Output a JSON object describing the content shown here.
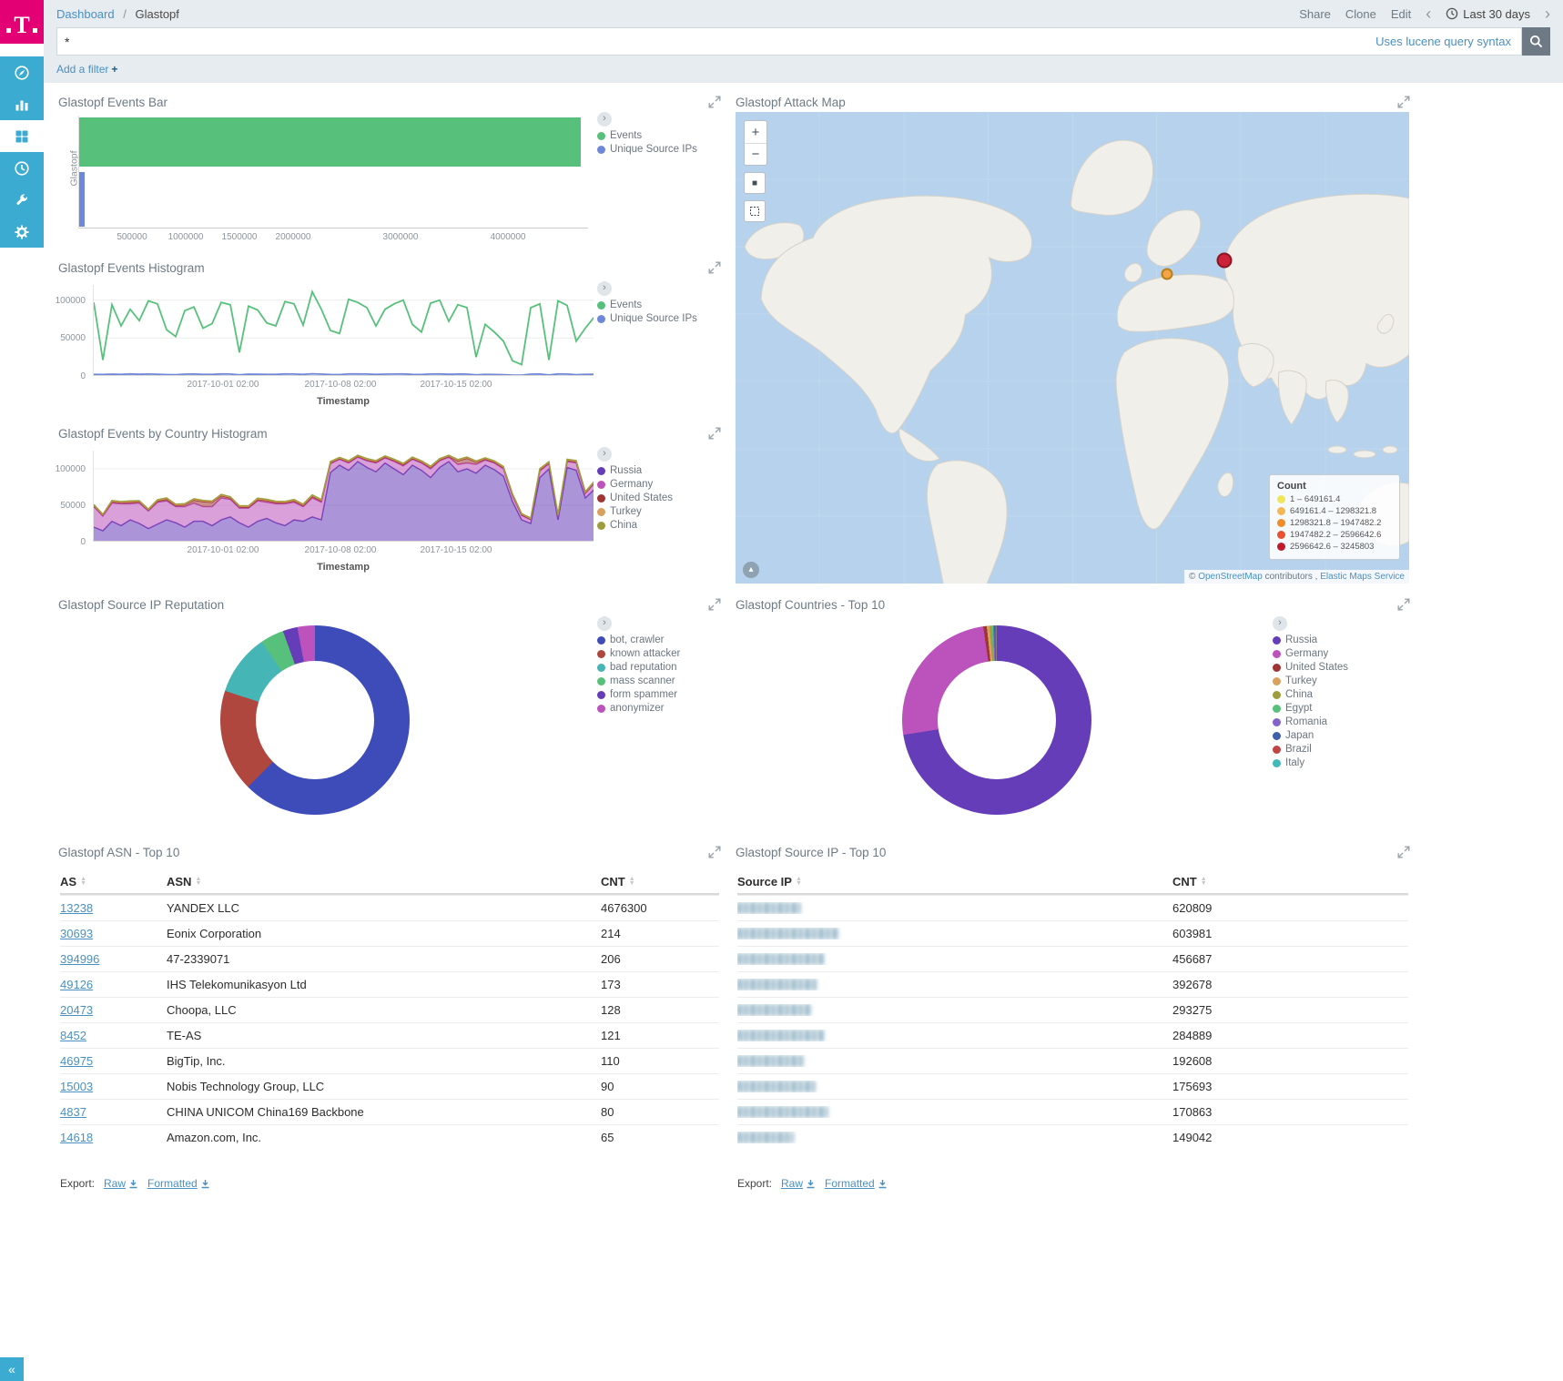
{
  "chrome": {
    "logo": "T",
    "breadcrumb": {
      "parent": "Dashboard",
      "sep": "/",
      "current": "Glastopf"
    },
    "actions": {
      "share": "Share",
      "clone": "Clone",
      "edit": "Edit"
    },
    "time": {
      "prev": "‹",
      "label": "Last 30 days",
      "next": "›"
    },
    "search": {
      "value": "*",
      "hint": "Uses lucene query syntax"
    },
    "add_filter": "Add a filter",
    "collapse": "«"
  },
  "sidebar": {
    "items": [
      {
        "name": "discover"
      },
      {
        "name": "visualize"
      },
      {
        "name": "dashboard",
        "active": true
      },
      {
        "name": "timelion"
      },
      {
        "name": "dev-tools"
      },
      {
        "name": "management"
      }
    ]
  },
  "panels": {
    "events_bar": {
      "title": "Glastopf Events Bar",
      "category": "Glastopf",
      "x_ticks": [
        500000,
        1000000,
        1500000,
        2000000,
        3000000,
        4000000
      ],
      "x_max": 4750000,
      "series": [
        {
          "label": "Events",
          "color": "#57c17b",
          "value": 4677487
        },
        {
          "label": "Unique Source IPs",
          "color": "#6f87d8",
          "value": 52000
        }
      ]
    },
    "attack_map": {
      "title": "Glastopf Attack Map",
      "controls": {
        "zoom_in": "+",
        "zoom_out": "−",
        "fit": "■"
      },
      "legend_title": "Count",
      "legend": [
        {
          "color": "#efe65a",
          "label": "1 – 649161.4"
        },
        {
          "color": "#f5b754",
          "label": "649161.4 – 1298321.8"
        },
        {
          "color": "#ef8d2a",
          "label": "1298321.8 – 1947482.2"
        },
        {
          "color": "#e85132",
          "label": "1947482.2 – 2596642.6"
        },
        {
          "color": "#bf1b2c",
          "label": "2596642.6 – 3245803"
        }
      ],
      "markers": [
        {
          "x": 0.641,
          "y": 0.344,
          "d": 13,
          "color": "#f5a44a",
          "border": "#b97f17"
        },
        {
          "x": 0.726,
          "y": 0.315,
          "d": 17,
          "color": "#cb2339",
          "border": "#8c1423"
        }
      ],
      "attribution": {
        "copy": "©",
        "osm": "OpenStreetMap",
        "contributors": "contributors",
        "sep": ",",
        "elastic": "Elastic Maps Service"
      }
    },
    "events_histogram": {
      "title": "Glastopf Events Histogram",
      "x_label": "Timestamp",
      "x_ticks": [
        "2017-10-01 02:00",
        "2017-10-08 02:00",
        "2017-10-15 02:00"
      ],
      "y_ticks": [
        0,
        50000,
        100000
      ],
      "y_max": 120000,
      "series": [
        {
          "label": "Events",
          "color": "#57c17b",
          "values": [
            97000,
            21000,
            94000,
            66000,
            88000,
            73000,
            99000,
            95000,
            61000,
            52000,
            86000,
            91000,
            63000,
            69000,
            97000,
            94000,
            31000,
            92000,
            87000,
            70000,
            66000,
            98000,
            95000,
            67000,
            111000,
            88000,
            60000,
            56000,
            101000,
            97000,
            90000,
            66000,
            88000,
            95000,
            100000,
            68000,
            58000,
            96000,
            100000,
            72000,
            94000,
            90000,
            25000,
            68000,
            58000,
            46000,
            20000,
            15000,
            90000,
            95000,
            21000,
            99000,
            93000,
            46000,
            63000,
            78000
          ]
        },
        {
          "label": "Unique Source IPs",
          "color": "#6f87d8",
          "values": [
            2100,
            1900,
            2400,
            2000,
            2600,
            2200,
            2500,
            2300,
            1800,
            1600,
            2400,
            2500,
            2000,
            2100,
            2600,
            2500,
            1500,
            2400,
            2300,
            2100,
            2000,
            2600,
            2500,
            2000,
            2900,
            2400,
            1900,
            1800,
            2700,
            2600,
            2500,
            2000,
            2400,
            2500,
            2600,
            2100,
            1900,
            2500,
            2600,
            2200,
            2500,
            2400,
            1400,
            2100,
            1900,
            1700,
            1200,
            1100,
            2400,
            2500,
            1300,
            2600,
            2500,
            1700,
            2000,
            2200
          ]
        }
      ]
    },
    "country_histogram": {
      "title": "Glastopf Events by Country Histogram",
      "x_label": "Timestamp",
      "x_ticks": [
        "2017-10-01 02:00",
        "2017-10-08 02:00",
        "2017-10-15 02:00"
      ],
      "y_ticks": [
        0,
        50000,
        100000
      ],
      "y_max": 125000,
      "series": [
        {
          "label": "Russia",
          "color": "#663db8",
          "values": [
            20000,
            15000,
            28000,
            22000,
            30000,
            25000,
            18000,
            24000,
            30000,
            26000,
            20000,
            28000,
            28000,
            22000,
            30000,
            34000,
            26000,
            20000,
            28000,
            32000,
            26000,
            22000,
            30000,
            28000,
            34000,
            30000,
            95000,
            105000,
            98000,
            110000,
            102000,
            96000,
            108000,
            100000,
            92000,
            105000,
            98000,
            88000,
            102000,
            110000,
            96000,
            100000,
            94000,
            105000,
            99000,
            90000,
            55000,
            30000,
            25000,
            88000,
            100000,
            30000,
            102000,
            98000,
            60000,
            72000
          ]
        },
        {
          "label": "Germany",
          "color": "#bc52bc",
          "values": [
            28000,
            20000,
            25000,
            30000,
            22000,
            28000,
            24000,
            30000,
            26000,
            22000,
            28000,
            25000,
            20000,
            26000,
            30000,
            24000,
            20000,
            26000,
            28000,
            22000,
            26000,
            30000,
            24000,
            20000,
            26000,
            24000,
            12000,
            8000,
            10000,
            6000,
            9000,
            12000,
            7000,
            10000,
            12000,
            8000,
            10000,
            12000,
            9000,
            6000,
            10000,
            8000,
            12000,
            7000,
            9000,
            10000,
            8000,
            6000,
            5000,
            9000,
            7000,
            5000,
            8000,
            10000,
            6000,
            8000
          ]
        },
        {
          "label": "United States",
          "color": "#9e3533",
          "values": [
            1500,
            1200,
            1800,
            1500,
            2000,
            1600,
            1400,
            1800,
            2200,
            1800,
            2500,
            4000,
            7000,
            6000,
            3000,
            2000,
            1800,
            1500,
            2000,
            2400,
            1800,
            1500,
            2000,
            1800,
            2400,
            2000,
            1500,
            1200,
            1500,
            1200,
            1400,
            1600,
            1200,
            1500,
            1800,
            1400,
            1500,
            1800,
            1400,
            1200,
            5000,
            6500,
            3000,
            1500,
            1400,
            1600,
            1300,
            1100,
            1000,
            1500,
            1300,
            1000,
            1500,
            1600,
            1200,
            1400
          ]
        },
        {
          "label": "Turkey",
          "color": "#daa05d",
          "values": [
            900,
            800,
            1000,
            900,
            1100,
            950,
            850,
            1000,
            1100,
            950,
            1000,
            1100,
            950,
            1000,
            1100,
            1000,
            900,
            950,
            1050,
            1000,
            950,
            1000,
            1100,
            950,
            1100,
            1000,
            900,
            850,
            950,
            900,
            950,
            1000,
            900,
            950,
            1050,
            950,
            900,
            1000,
            950,
            900,
            1000,
            950,
            1000,
            900,
            950,
            1000,
            900,
            850,
            800,
            950,
            900,
            800,
            950,
            1000,
            850,
            900
          ]
        },
        {
          "label": "China",
          "color": "#9d9d3d",
          "values": [
            700,
            650,
            800,
            700,
            850,
            750,
            680,
            780,
            850,
            760,
            780,
            850,
            740,
            780,
            850,
            780,
            700,
            750,
            820,
            780,
            750,
            780,
            850,
            740,
            850,
            780,
            700,
            680,
            750,
            700,
            740,
            780,
            700,
            750,
            820,
            740,
            700,
            780,
            740,
            700,
            780,
            740,
            780,
            700,
            750,
            780,
            700,
            670,
            650,
            750,
            700,
            650,
            750,
            780,
            680,
            700
          ]
        }
      ]
    },
    "ip_reputation": {
      "title": "Glastopf Source IP Reputation",
      "slices": [
        {
          "label": "bot, crawler",
          "color": "#3e4cba",
          "pct": 62.5
        },
        {
          "label": "known attacker",
          "color": "#b0473e",
          "pct": 17.5
        },
        {
          "label": "bad reputation",
          "color": "#45b5b5",
          "pct": 10.5
        },
        {
          "label": "mass scanner",
          "color": "#57c17b",
          "pct": 4
        },
        {
          "label": "form spammer",
          "color": "#663db8",
          "pct": 2.5
        },
        {
          "label": "anonymizer",
          "color": "#bc52bc",
          "pct": 3
        }
      ]
    },
    "countries_top10": {
      "title": "Glastopf Countries - Top 10",
      "slices": [
        {
          "label": "Russia",
          "color": "#663db8",
          "pct": 72.5
        },
        {
          "label": "Germany",
          "color": "#bc52bc",
          "pct": 25.2
        },
        {
          "label": "United States",
          "color": "#9e3533",
          "pct": 0.6
        },
        {
          "label": "Turkey",
          "color": "#daa05d",
          "pct": 0.5
        },
        {
          "label": "China",
          "color": "#9d9d3d",
          "pct": 0.3
        },
        {
          "label": "Egypt",
          "color": "#57c17b",
          "pct": 0.25
        },
        {
          "label": "Romania",
          "color": "#8462c9",
          "pct": 0.2
        },
        {
          "label": "Japan",
          "color": "#3f5eab",
          "pct": 0.2
        },
        {
          "label": "Brazil",
          "color": "#c24444",
          "pct": 0.15
        },
        {
          "label": "Italy",
          "color": "#44b9b9",
          "pct": 0.1
        }
      ]
    },
    "asn_table": {
      "title": "Glastopf ASN - Top 10",
      "columns": [
        "AS",
        "ASN",
        "CNT"
      ],
      "rows": [
        {
          "as": "13238",
          "asn": "YANDEX LLC",
          "cnt": "4676300"
        },
        {
          "as": "30693",
          "asn": "Eonix Corporation",
          "cnt": "214"
        },
        {
          "as": "394996",
          "asn": "47-2339071",
          "cnt": "206"
        },
        {
          "as": "49126",
          "asn": "IHS Telekomunikasyon Ltd",
          "cnt": "173"
        },
        {
          "as": "20473",
          "asn": "Choopa, LLC",
          "cnt": "128"
        },
        {
          "as": "8452",
          "asn": "TE-AS",
          "cnt": "121"
        },
        {
          "as": "46975",
          "asn": "BigTip, Inc.",
          "cnt": "110"
        },
        {
          "as": "15003",
          "asn": "Nobis Technology Group, LLC",
          "cnt": "90"
        },
        {
          "as": "4837",
          "asn": "CHINA UNICOM China169 Backbone",
          "cnt": "80"
        },
        {
          "as": "14618",
          "asn": "Amazon.com, Inc.",
          "cnt": "65"
        }
      ],
      "export_label": "Export:",
      "raw_label": "Raw",
      "formatted_label": "Formatted"
    },
    "source_ip_table": {
      "title": "Glastopf Source IP - Top 10",
      "columns": [
        "Source IP",
        "CNT"
      ],
      "rows": [
        {
          "redacted": true,
          "blur_width": 70,
          "cnt": "620809"
        },
        {
          "redacted": true,
          "blur_width": 112,
          "cnt": "603981"
        },
        {
          "redacted": true,
          "blur_width": 96,
          "cnt": "456687"
        },
        {
          "redacted": true,
          "blur_width": 88,
          "cnt": "392678"
        },
        {
          "redacted": true,
          "blur_width": 82,
          "cnt": "293275"
        },
        {
          "redacted": true,
          "blur_width": 96,
          "cnt": "284889"
        },
        {
          "redacted": true,
          "blur_width": 74,
          "cnt": "192608"
        },
        {
          "redacted": true,
          "blur_width": 86,
          "cnt": "175693"
        },
        {
          "redacted": true,
          "blur_width": 100,
          "cnt": "170863"
        },
        {
          "redacted": true,
          "blur_width": 62,
          "cnt": "149042"
        }
      ],
      "export_label": "Export:",
      "raw_label": "Raw",
      "formatted_label": "Formatted"
    }
  }
}
